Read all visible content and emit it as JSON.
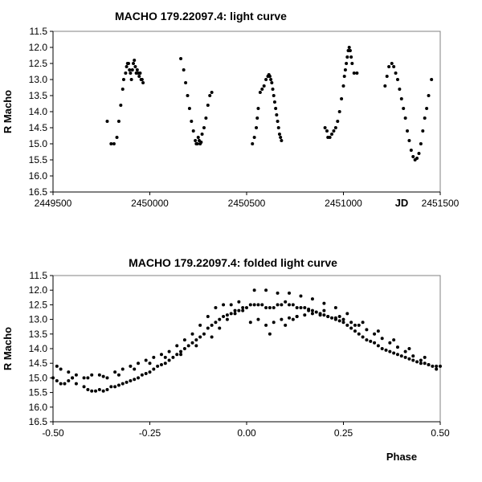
{
  "chart_data": [
    {
      "type": "scatter",
      "title": "MACHO 179.22097.4: light curve",
      "xlabel": "JD",
      "ylabel": "R Macho",
      "xlim": [
        2449500,
        2451500
      ],
      "ylim": [
        11.5,
        16.5
      ],
      "y_inverted": true,
      "grid": false,
      "legend": "none",
      "x_ticks": [
        2449500,
        2450000,
        2450500,
        2451000,
        2451500
      ],
      "x_tick_labels": [
        "2449500",
        "2450000",
        "2450500",
        "2451000",
        "2451500"
      ],
      "y_ticks": [
        11.5,
        12.0,
        12.5,
        13.0,
        13.5,
        14.0,
        14.5,
        15.0,
        15.5,
        16.0,
        16.5
      ],
      "y_tick_labels": [
        "11.5",
        "12.0",
        "12.5",
        "13.0",
        "13.5",
        "14.0",
        "14.5",
        "15.0",
        "15.5",
        "16.0",
        "16.5"
      ],
      "marker_color": "#000000",
      "series": [
        {
          "x": [
            2449780,
            2449800,
            2449815,
            2449830,
            2449840,
            2449850,
            2449860,
            2449865,
            2449875,
            2449880,
            2449885,
            2449890,
            2449895,
            2449900,
            2449905,
            2449910,
            2449915,
            2449920,
            2449925,
            2449930,
            2449935,
            2449940,
            2449945,
            2449950,
            2449955,
            2449960,
            2449965,
            2450160,
            2450175,
            2450185,
            2450195,
            2450205,
            2450215,
            2450225,
            2450235,
            2450240,
            2450245,
            2450250,
            2450255,
            2450260,
            2450265,
            2450270,
            2450280,
            2450290,
            2450300,
            2450310,
            2450320,
            2450530,
            2450540,
            2450550,
            2450555,
            2450560,
            2450570,
            2450580,
            2450590,
            2450600,
            2450610,
            2450615,
            2450620,
            2450625,
            2450630,
            2450635,
            2450640,
            2450645,
            2450650,
            2450655,
            2450660,
            2450665,
            2450670,
            2450675,
            2450680,
            2450905,
            2450915,
            2450920,
            2450930,
            2450940,
            2450950,
            2450960,
            2450970,
            2450980,
            2450990,
            2451000,
            2451005,
            2451010,
            2451015,
            2451020,
            2451025,
            2451030,
            2451035,
            2451040,
            2451045,
            2451055,
            2451070,
            2451215,
            2451225,
            2451235,
            2451250,
            2451260,
            2451270,
            2451280,
            2451290,
            2451300,
            2451310,
            2451320,
            2451330,
            2451340,
            2451350,
            2451360,
            2451370,
            2451380,
            2451390,
            2451400,
            2451410,
            2451420,
            2451430,
            2451440,
            2451455
          ],
          "y": [
            14.3,
            15.0,
            15.0,
            14.8,
            14.3,
            13.8,
            13.3,
            13.0,
            12.8,
            12.6,
            12.5,
            12.5,
            12.7,
            12.8,
            13.0,
            12.7,
            12.5,
            12.4,
            12.6,
            12.8,
            12.7,
            12.8,
            12.9,
            12.8,
            13.0,
            13.0,
            13.1,
            12.35,
            12.7,
            13.1,
            13.5,
            13.9,
            14.3,
            14.6,
            14.9,
            15.0,
            15.0,
            14.8,
            14.9,
            15.0,
            14.95,
            14.7,
            14.5,
            14.2,
            13.8,
            13.5,
            13.4,
            15.0,
            14.8,
            14.5,
            14.2,
            13.9,
            13.4,
            13.3,
            13.2,
            13.0,
            12.9,
            12.85,
            12.9,
            13.0,
            13.1,
            13.3,
            13.5,
            13.7,
            13.9,
            14.1,
            14.3,
            14.5,
            14.7,
            14.8,
            14.9,
            14.5,
            14.6,
            14.8,
            14.8,
            14.7,
            14.6,
            14.5,
            14.3,
            14.0,
            13.6,
            13.2,
            12.9,
            12.7,
            12.5,
            12.3,
            12.1,
            12.0,
            12.1,
            12.3,
            12.5,
            12.8,
            12.8,
            13.2,
            12.9,
            12.6,
            12.5,
            12.6,
            12.8,
            13.0,
            13.3,
            13.6,
            13.9,
            14.2,
            14.6,
            14.9,
            15.2,
            15.4,
            15.5,
            15.45,
            15.3,
            15.0,
            14.6,
            14.2,
            13.9,
            13.5,
            13.0
          ]
        }
      ]
    },
    {
      "type": "scatter",
      "title": "MACHO 179.22097.4: folded light curve",
      "xlabel": "Phase",
      "ylabel": "R Macho",
      "xlim": [
        -0.5,
        0.5
      ],
      "ylim": [
        11.5,
        16.5
      ],
      "y_inverted": true,
      "grid": false,
      "legend": "none",
      "x_ticks": [
        -0.5,
        -0.25,
        0.0,
        0.25,
        0.5
      ],
      "x_tick_labels": [
        "-0.50",
        "-0.25",
        "0.00",
        "0.25",
        "0.50"
      ],
      "y_ticks": [
        11.5,
        12.0,
        12.5,
        13.0,
        13.5,
        14.0,
        14.5,
        15.0,
        15.5,
        16.0,
        16.5
      ],
      "y_tick_labels": [
        "11.5",
        "12.0",
        "12.5",
        "13.0",
        "13.5",
        "14.0",
        "14.5",
        "15.0",
        "15.5",
        "16.0",
        "16.5"
      ],
      "marker_color": "#000000",
      "series": [
        {
          "x": [
            -0.5,
            -0.49,
            -0.48,
            -0.47,
            -0.46,
            -0.45,
            -0.44,
            -0.42,
            -0.41,
            -0.4,
            -0.39,
            -0.38,
            -0.37,
            -0.36,
            -0.35,
            -0.34,
            -0.33,
            -0.32,
            -0.31,
            -0.3,
            -0.29,
            -0.28,
            -0.27,
            -0.26,
            -0.25,
            -0.24,
            -0.23,
            -0.22,
            -0.21,
            -0.2,
            -0.19,
            -0.18,
            -0.17,
            -0.16,
            -0.15,
            -0.14,
            -0.13,
            -0.12,
            -0.11,
            -0.1,
            -0.09,
            -0.08,
            -0.07,
            -0.06,
            -0.05,
            -0.04,
            -0.03,
            -0.02,
            -0.01,
            0.0,
            -0.49,
            -0.48,
            -0.46,
            -0.44,
            -0.42,
            -0.4,
            -0.38,
            -0.36,
            -0.34,
            -0.32,
            -0.3,
            -0.28,
            -0.26,
            -0.24,
            -0.22,
            -0.2,
            -0.18,
            -0.16,
            -0.14,
            -0.12,
            -0.1,
            -0.08,
            -0.06,
            -0.04,
            -0.02,
            -0.45,
            -0.41,
            -0.37,
            -0.33,
            -0.29,
            -0.25,
            -0.21,
            -0.17,
            -0.13,
            -0.09,
            -0.07,
            -0.05,
            -0.03,
            -0.01,
            0.01,
            0.02,
            0.03,
            0.04,
            0.05,
            0.06,
            0.07,
            0.08,
            0.09,
            0.1,
            0.11,
            0.12,
            0.13,
            0.14,
            0.15,
            0.16,
            0.17,
            0.18,
            0.19,
            0.2,
            0.21,
            0.22,
            0.23,
            0.24,
            0.25,
            0.26,
            0.27,
            0.28,
            0.29,
            0.3,
            0.31,
            0.32,
            0.33,
            0.34,
            0.35,
            0.36,
            0.37,
            0.38,
            0.39,
            0.4,
            0.41,
            0.42,
            0.43,
            0.44,
            0.45,
            0.46,
            0.47,
            0.48,
            0.49,
            0.01,
            0.03,
            0.05,
            0.07,
            0.09,
            0.11,
            0.13,
            0.15,
            0.17,
            0.19,
            0.21,
            0.23,
            0.25,
            0.27,
            0.29,
            0.31,
            0.33,
            0.35,
            0.37,
            0.39,
            0.41,
            0.43,
            0.45,
            0.47,
            0.49,
            0.02,
            0.05,
            0.08,
            0.11,
            0.14,
            0.17,
            0.2,
            0.23,
            0.26,
            0.3,
            0.34,
            0.38,
            0.42,
            0.46,
            0.5,
            0.06,
            0.1,
            0.12,
            0.13,
            0.16,
            0.2,
            0.24,
            0.28
          ],
          "y": [
            15.0,
            15.1,
            15.2,
            15.2,
            15.1,
            15.0,
            15.2,
            15.3,
            15.4,
            15.45,
            15.45,
            15.4,
            15.45,
            15.4,
            15.3,
            15.3,
            15.25,
            15.2,
            15.15,
            15.1,
            15.05,
            15.0,
            14.9,
            14.85,
            14.8,
            14.7,
            14.6,
            14.55,
            14.5,
            14.4,
            14.3,
            14.2,
            14.1,
            14.0,
            13.9,
            13.8,
            13.7,
            13.6,
            13.5,
            13.3,
            13.2,
            13.1,
            13.0,
            12.9,
            12.85,
            12.8,
            12.7,
            12.7,
            12.6,
            12.6,
            14.6,
            14.7,
            14.8,
            14.9,
            15.0,
            14.9,
            14.9,
            15.0,
            14.8,
            14.7,
            14.6,
            14.5,
            14.4,
            14.3,
            14.2,
            14.1,
            13.9,
            13.7,
            13.5,
            13.2,
            12.9,
            12.6,
            12.5,
            12.5,
            12.4,
            15.0,
            15.0,
            14.95,
            14.9,
            14.7,
            14.5,
            14.3,
            14.2,
            13.9,
            13.6,
            13.3,
            13.0,
            12.8,
            12.7,
            12.5,
            12.5,
            12.5,
            12.5,
            12.6,
            12.6,
            12.6,
            12.5,
            12.5,
            12.4,
            12.5,
            12.5,
            12.6,
            12.6,
            12.6,
            12.65,
            12.7,
            12.75,
            12.8,
            12.85,
            12.9,
            12.95,
            13.0,
            13.05,
            13.1,
            13.2,
            13.3,
            13.4,
            13.5,
            13.6,
            13.7,
            13.75,
            13.8,
            13.9,
            14.0,
            14.05,
            14.1,
            14.15,
            14.2,
            14.25,
            14.3,
            14.35,
            14.4,
            14.45,
            14.5,
            14.5,
            14.55,
            14.6,
            14.6,
            13.1,
            13.0,
            13.2,
            13.1,
            13.0,
            12.95,
            12.9,
            12.85,
            12.8,
            12.85,
            12.9,
            12.95,
            13.0,
            13.1,
            13.2,
            13.35,
            13.5,
            13.65,
            13.8,
            13.95,
            14.1,
            14.25,
            14.4,
            14.55,
            14.7,
            12.0,
            12.0,
            12.1,
            12.1,
            12.2,
            12.3,
            12.45,
            12.6,
            12.8,
            13.1,
            13.4,
            13.7,
            14.0,
            14.3,
            14.6,
            13.5,
            13.2,
            13.0,
            12.9,
            12.7,
            12.7,
            12.9,
            13.2
          ]
        }
      ]
    }
  ]
}
